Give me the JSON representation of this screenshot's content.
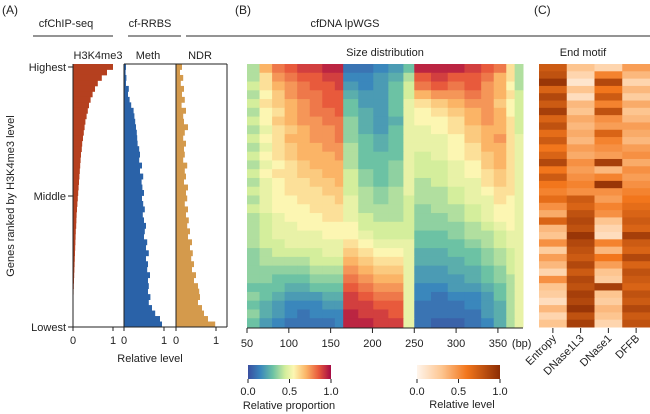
{
  "panels": {
    "A": {
      "label": "(A)",
      "group1": "cfChIP-seq",
      "group2": "cf-RRBS"
    },
    "B": {
      "label": "(B)",
      "group": "cfDNA lpWGS",
      "title": "Size distribution"
    },
    "C": {
      "label": "(C)",
      "title": "End motif"
    }
  },
  "chart_data": [
    {
      "type": "bar",
      "orientation": "horizontal",
      "panel": "A",
      "ylabel": "Genes ranked by H3K4me3 level",
      "y_ticks": [
        "Highest",
        "Middle",
        "Lowest"
      ],
      "xlabel": "Relative level",
      "series": [
        {
          "name": "H3K4me3",
          "color": "#b5401f",
          "xlim": [
            0,
            1
          ],
          "x_ticks": [
            "0",
            "1"
          ],
          "values": [
            1.0,
            0.85,
            0.72,
            0.62,
            0.55,
            0.49,
            0.44,
            0.4,
            0.37,
            0.34,
            0.31,
            0.29,
            0.27,
            0.25,
            0.23,
            0.22,
            0.2,
            0.19,
            0.18,
            0.17,
            0.16,
            0.15,
            0.14,
            0.13,
            0.12,
            0.11,
            0.1,
            0.09,
            0.085,
            0.08,
            0.07,
            0.065,
            0.06,
            0.055,
            0.05,
            0.045,
            0.04,
            0.035,
            0.03,
            0.025,
            0.02,
            0.015,
            0.01,
            0.008,
            0.005,
            0.003,
            0.002,
            0.001
          ]
        },
        {
          "name": "Meth",
          "color": "#2a62a8",
          "xlim": [
            0,
            1
          ],
          "x_ticks": [
            "0",
            "1"
          ],
          "values": [
            0.05,
            0.04,
            0.06,
            0.05,
            0.12,
            0.1,
            0.14,
            0.18,
            0.24,
            0.26,
            0.28,
            0.3,
            0.32,
            0.33,
            0.34,
            0.38,
            0.4,
            0.38,
            0.45,
            0.4,
            0.48,
            0.44,
            0.46,
            0.5,
            0.45,
            0.48,
            0.52,
            0.47,
            0.5,
            0.55,
            0.52,
            0.5,
            0.58,
            0.55,
            0.62,
            0.55,
            0.6,
            0.58,
            0.65,
            0.6,
            0.62,
            0.6,
            0.66,
            0.62,
            0.7,
            0.78,
            0.9,
            0.95
          ]
        },
        {
          "name": "NDR",
          "color": "#d49a4c",
          "xlim": [
            0,
            1
          ],
          "x_ticks": [
            "0",
            "1"
          ],
          "values": [
            0.15,
            0.1,
            0.18,
            0.12,
            0.2,
            0.15,
            0.22,
            0.14,
            0.25,
            0.18,
            0.2,
            0.3,
            0.22,
            0.18,
            0.25,
            0.2,
            0.22,
            0.18,
            0.28,
            0.22,
            0.25,
            0.2,
            0.3,
            0.25,
            0.28,
            0.22,
            0.3,
            0.25,
            0.32,
            0.28,
            0.35,
            0.3,
            0.4,
            0.35,
            0.42,
            0.38,
            0.45,
            0.4,
            0.5,
            0.45,
            0.55,
            0.58,
            0.6,
            0.55,
            0.65,
            0.7,
            0.8,
            0.98
          ]
        }
      ]
    },
    {
      "type": "heatmap",
      "panel": "B",
      "title": "Size distribution",
      "xlabel": "(bp)",
      "x_range": [
        50,
        380
      ],
      "x_ticks": [
        "50",
        "100",
        "150",
        "200",
        "250",
        "300",
        "350"
      ],
      "x_tick_values": [
        50,
        100,
        150,
        200,
        250,
        300,
        350
      ],
      "colorbar": {
        "label": "Relative proportion",
        "ticks": [
          "0.0",
          "0.5",
          "1.0"
        ],
        "colormap": "Spectral_r",
        "range": [
          0,
          1
        ]
      },
      "rows_note": "rows ordered Highest to Lowest H3K4me3",
      "matrix": [
        [
          0.4,
          0.7,
          0.8,
          0.85,
          0.9,
          0.9,
          0.95,
          0.95,
          0.1,
          0.1,
          0.15,
          0.2,
          0.3,
          0.95,
          0.95,
          0.95,
          0.9,
          0.85,
          0.8,
          0.6,
          0.4,
          0.3
        ],
        [
          0.4,
          0.6,
          0.75,
          0.8,
          0.85,
          0.85,
          0.9,
          0.9,
          0.15,
          0.15,
          0.2,
          0.25,
          0.4,
          0.85,
          0.9,
          0.85,
          0.85,
          0.8,
          0.7,
          0.6,
          0.4,
          0.3
        ],
        [
          0.45,
          0.6,
          0.7,
          0.75,
          0.8,
          0.85,
          0.85,
          0.9,
          0.2,
          0.15,
          0.2,
          0.3,
          0.45,
          0.8,
          0.85,
          0.8,
          0.85,
          0.75,
          0.7,
          0.55,
          0.4,
          0.3
        ],
        [
          0.4,
          0.55,
          0.65,
          0.75,
          0.8,
          0.8,
          0.85,
          0.85,
          0.25,
          0.2,
          0.2,
          0.3,
          0.45,
          0.7,
          0.75,
          0.75,
          0.8,
          0.75,
          0.7,
          0.6,
          0.45,
          0.35
        ],
        [
          0.45,
          0.6,
          0.65,
          0.7,
          0.75,
          0.8,
          0.85,
          0.85,
          0.3,
          0.2,
          0.2,
          0.3,
          0.5,
          0.6,
          0.65,
          0.7,
          0.75,
          0.75,
          0.65,
          0.55,
          0.45,
          0.35
        ],
        [
          0.4,
          0.55,
          0.6,
          0.7,
          0.75,
          0.8,
          0.8,
          0.85,
          0.3,
          0.25,
          0.2,
          0.3,
          0.5,
          0.55,
          0.6,
          0.65,
          0.7,
          0.75,
          0.7,
          0.55,
          0.45,
          0.35
        ],
        [
          0.45,
          0.55,
          0.65,
          0.7,
          0.75,
          0.75,
          0.8,
          0.8,
          0.35,
          0.25,
          0.2,
          0.25,
          0.5,
          0.55,
          0.55,
          0.6,
          0.7,
          0.75,
          0.7,
          0.6,
          0.45,
          0.35
        ],
        [
          0.4,
          0.5,
          0.6,
          0.65,
          0.7,
          0.75,
          0.75,
          0.8,
          0.35,
          0.25,
          0.2,
          0.3,
          0.5,
          0.5,
          0.55,
          0.6,
          0.65,
          0.7,
          0.7,
          0.6,
          0.45,
          0.35
        ],
        [
          0.45,
          0.55,
          0.6,
          0.7,
          0.7,
          0.75,
          0.75,
          0.8,
          0.35,
          0.3,
          0.25,
          0.3,
          0.5,
          0.5,
          0.5,
          0.55,
          0.65,
          0.7,
          0.75,
          0.6,
          0.5,
          0.4
        ],
        [
          0.4,
          0.5,
          0.6,
          0.65,
          0.7,
          0.7,
          0.75,
          0.75,
          0.4,
          0.3,
          0.25,
          0.3,
          0.5,
          0.5,
          0.5,
          0.55,
          0.6,
          0.7,
          0.7,
          0.6,
          0.5,
          0.4
        ],
        [
          0.45,
          0.55,
          0.6,
          0.65,
          0.7,
          0.7,
          0.7,
          0.75,
          0.4,
          0.3,
          0.3,
          0.3,
          0.5,
          0.45,
          0.5,
          0.55,
          0.6,
          0.65,
          0.7,
          0.6,
          0.5,
          0.4
        ],
        [
          0.4,
          0.5,
          0.55,
          0.6,
          0.65,
          0.7,
          0.7,
          0.7,
          0.4,
          0.3,
          0.3,
          0.35,
          0.5,
          0.45,
          0.45,
          0.5,
          0.55,
          0.65,
          0.7,
          0.6,
          0.5,
          0.4
        ],
        [
          0.45,
          0.55,
          0.6,
          0.6,
          0.65,
          0.65,
          0.7,
          0.7,
          0.45,
          0.35,
          0.3,
          0.35,
          0.5,
          0.45,
          0.45,
          0.5,
          0.55,
          0.6,
          0.65,
          0.6,
          0.5,
          0.4
        ],
        [
          0.4,
          0.5,
          0.55,
          0.6,
          0.6,
          0.65,
          0.65,
          0.7,
          0.45,
          0.35,
          0.3,
          0.35,
          0.5,
          0.4,
          0.45,
          0.5,
          0.5,
          0.6,
          0.65,
          0.6,
          0.5,
          0.4
        ],
        [
          0.45,
          0.5,
          0.55,
          0.6,
          0.6,
          0.6,
          0.65,
          0.65,
          0.45,
          0.4,
          0.35,
          0.4,
          0.5,
          0.4,
          0.4,
          0.45,
          0.5,
          0.55,
          0.6,
          0.6,
          0.5,
          0.45
        ],
        [
          0.4,
          0.5,
          0.55,
          0.55,
          0.6,
          0.6,
          0.6,
          0.65,
          0.5,
          0.4,
          0.35,
          0.4,
          0.45,
          0.4,
          0.4,
          0.45,
          0.5,
          0.5,
          0.6,
          0.55,
          0.5,
          0.45
        ],
        [
          0.45,
          0.5,
          0.55,
          0.55,
          0.55,
          0.6,
          0.6,
          0.6,
          0.5,
          0.4,
          0.4,
          0.4,
          0.45,
          0.35,
          0.4,
          0.4,
          0.45,
          0.5,
          0.55,
          0.55,
          0.5,
          0.45
        ],
        [
          0.4,
          0.45,
          0.5,
          0.55,
          0.55,
          0.55,
          0.6,
          0.6,
          0.5,
          0.45,
          0.4,
          0.4,
          0.45,
          0.35,
          0.35,
          0.4,
          0.45,
          0.5,
          0.55,
          0.55,
          0.5,
          0.45
        ],
        [
          0.4,
          0.45,
          0.5,
          0.5,
          0.55,
          0.55,
          0.55,
          0.55,
          0.55,
          0.45,
          0.45,
          0.45,
          0.45,
          0.35,
          0.35,
          0.35,
          0.4,
          0.45,
          0.5,
          0.55,
          0.5,
          0.45
        ],
        [
          0.4,
          0.45,
          0.5,
          0.5,
          0.5,
          0.5,
          0.55,
          0.55,
          0.55,
          0.5,
          0.45,
          0.45,
          0.45,
          0.3,
          0.3,
          0.35,
          0.4,
          0.4,
          0.45,
          0.5,
          0.5,
          0.45
        ],
        [
          0.4,
          0.45,
          0.45,
          0.5,
          0.5,
          0.5,
          0.5,
          0.5,
          0.6,
          0.55,
          0.5,
          0.5,
          0.5,
          0.3,
          0.3,
          0.3,
          0.35,
          0.4,
          0.45,
          0.5,
          0.5,
          0.45
        ],
        [
          0.35,
          0.4,
          0.45,
          0.45,
          0.45,
          0.45,
          0.5,
          0.5,
          0.65,
          0.6,
          0.55,
          0.55,
          0.5,
          0.25,
          0.25,
          0.3,
          0.3,
          0.35,
          0.4,
          0.45,
          0.5,
          0.45
        ],
        [
          0.35,
          0.4,
          0.4,
          0.4,
          0.4,
          0.45,
          0.45,
          0.45,
          0.7,
          0.65,
          0.6,
          0.6,
          0.5,
          0.25,
          0.25,
          0.25,
          0.3,
          0.35,
          0.4,
          0.45,
          0.5,
          0.45
        ],
        [
          0.35,
          0.35,
          0.35,
          0.35,
          0.35,
          0.4,
          0.4,
          0.4,
          0.75,
          0.7,
          0.65,
          0.65,
          0.5,
          0.2,
          0.2,
          0.25,
          0.25,
          0.3,
          0.35,
          0.45,
          0.5,
          0.5
        ],
        [
          0.35,
          0.35,
          0.3,
          0.3,
          0.3,
          0.35,
          0.35,
          0.35,
          0.8,
          0.75,
          0.7,
          0.7,
          0.5,
          0.2,
          0.2,
          0.2,
          0.25,
          0.3,
          0.35,
          0.4,
          0.5,
          0.5
        ],
        [
          0.3,
          0.3,
          0.3,
          0.25,
          0.25,
          0.3,
          0.3,
          0.3,
          0.85,
          0.8,
          0.75,
          0.75,
          0.5,
          0.15,
          0.15,
          0.2,
          0.2,
          0.25,
          0.3,
          0.4,
          0.5,
          0.5
        ],
        [
          0.35,
          0.3,
          0.25,
          0.2,
          0.2,
          0.2,
          0.25,
          0.25,
          0.9,
          0.85,
          0.8,
          0.8,
          0.5,
          0.15,
          0.1,
          0.15,
          0.15,
          0.2,
          0.3,
          0.4,
          0.5,
          0.5
        ],
        [
          0.3,
          0.25,
          0.2,
          0.15,
          0.15,
          0.15,
          0.2,
          0.2,
          0.9,
          0.9,
          0.85,
          0.85,
          0.5,
          0.1,
          0.1,
          0.1,
          0.15,
          0.2,
          0.25,
          0.4,
          0.5,
          0.5
        ],
        [
          0.35,
          0.25,
          0.2,
          0.15,
          0.1,
          0.15,
          0.15,
          0.15,
          0.95,
          0.9,
          0.9,
          0.85,
          0.5,
          0.1,
          0.1,
          0.1,
          0.1,
          0.2,
          0.25,
          0.4,
          0.5,
          0.55
        ],
        [
          0.3,
          0.2,
          0.15,
          0.1,
          0.1,
          0.1,
          0.1,
          0.15,
          0.95,
          0.95,
          0.9,
          0.9,
          0.5,
          0.1,
          0.05,
          0.05,
          0.1,
          0.15,
          0.25,
          0.4,
          0.5,
          0.55
        ]
      ],
      "column_edges_bp": [
        50,
        65,
        80,
        95,
        110,
        125,
        140,
        155,
        165,
        183,
        201,
        219,
        237,
        250,
        270,
        290,
        310,
        330,
        345,
        360,
        370,
        380
      ]
    },
    {
      "type": "heatmap",
      "panel": "C",
      "title": "End motif",
      "x_categories": [
        "Entropy",
        "DNase1L3",
        "DNase1",
        "DFFB"
      ],
      "colorbar": {
        "label": "Relative level",
        "ticks": [
          "0.0",
          "0.5",
          "1.0"
        ],
        "colormap": "Oranges",
        "range": [
          0,
          1
        ]
      },
      "matrix": [
        [
          0.75,
          0.3,
          0.2,
          0.45
        ],
        [
          0.8,
          0.2,
          0.55,
          0.35
        ],
        [
          0.95,
          0.1,
          0.85,
          0.2
        ],
        [
          0.7,
          0.3,
          0.6,
          0.35
        ],
        [
          0.85,
          0.15,
          0.75,
          0.25
        ],
        [
          0.75,
          0.35,
          0.55,
          0.4
        ],
        [
          0.9,
          0.3,
          0.8,
          0.3
        ],
        [
          0.7,
          0.4,
          0.5,
          0.35
        ],
        [
          0.8,
          0.35,
          0.45,
          0.45
        ],
        [
          0.65,
          0.4,
          0.7,
          0.4
        ],
        [
          0.75,
          0.35,
          0.55,
          0.35
        ],
        [
          0.6,
          0.45,
          0.5,
          0.45
        ],
        [
          0.7,
          0.4,
          0.45,
          0.5
        ],
        [
          0.85,
          0.5,
          0.9,
          0.4
        ],
        [
          0.6,
          0.45,
          0.35,
          0.5
        ],
        [
          0.75,
          0.5,
          0.55,
          0.45
        ],
        [
          0.6,
          0.55,
          0.95,
          0.5
        ],
        [
          0.55,
          0.5,
          0.5,
          0.55
        ],
        [
          0.65,
          0.75,
          0.45,
          0.6
        ],
        [
          0.5,
          0.7,
          0.55,
          0.65
        ],
        [
          0.4,
          0.8,
          0.5,
          0.7
        ],
        [
          0.7,
          0.85,
          0.3,
          0.75
        ],
        [
          0.35,
          0.8,
          0.2,
          0.7
        ],
        [
          0.3,
          0.95,
          0.15,
          0.9
        ],
        [
          0.5,
          0.85,
          0.55,
          0.75
        ],
        [
          0.25,
          0.8,
          0.35,
          0.7
        ],
        [
          0.45,
          0.75,
          0.6,
          0.85
        ],
        [
          0.35,
          0.85,
          0.45,
          0.7
        ],
        [
          0.2,
          0.75,
          0.3,
          0.8
        ],
        [
          0.5,
          0.85,
          0.25,
          0.75
        ],
        [
          0.3,
          0.8,
          0.9,
          0.7
        ],
        [
          0.25,
          0.9,
          0.3,
          0.8
        ],
        [
          0.15,
          0.85,
          0.25,
          0.75
        ],
        [
          0.35,
          0.95,
          0.35,
          0.85
        ],
        [
          0.2,
          0.8,
          0.3,
          0.75
        ],
        [
          0.3,
          0.9,
          0.2,
          0.8
        ]
      ]
    }
  ]
}
